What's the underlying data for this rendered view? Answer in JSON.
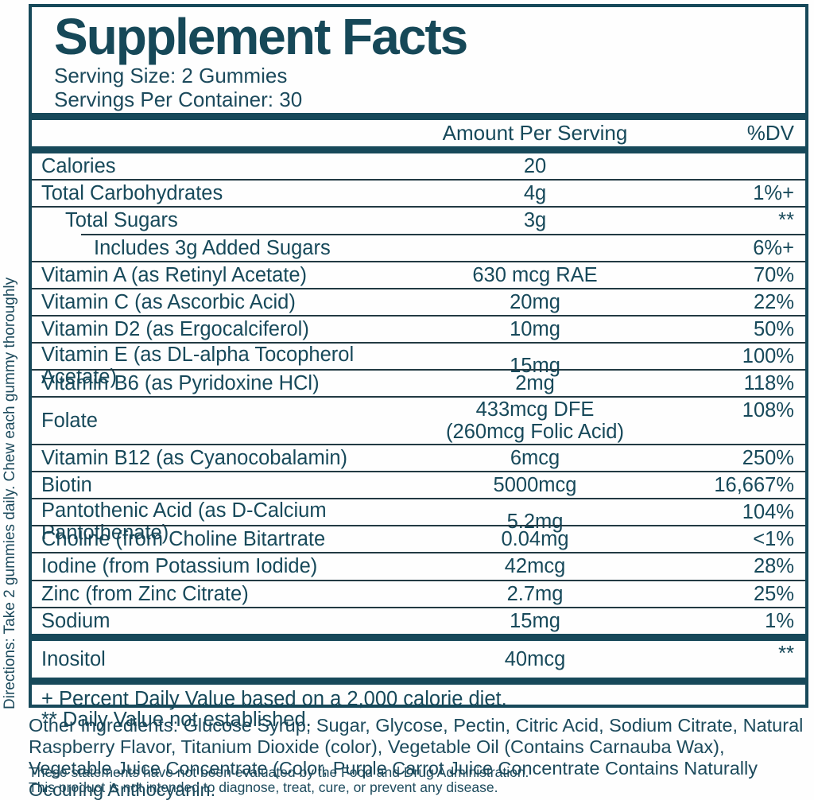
{
  "colors": {
    "teal": "#17495a",
    "separator": "#223a43"
  },
  "panel": {
    "title": "Supplement Facts",
    "serving_size": "Serving Size: 2 Gummies",
    "servings_per_container": "Servings Per Container: 30",
    "columns": {
      "amount": "Amount Per Serving",
      "dv": "%DV"
    },
    "rows": [
      {
        "name": "Calories",
        "amount": "20",
        "dv": "",
        "indent": 0,
        "sep": "none"
      },
      {
        "name": "Total Carbohydrates",
        "amount": "4g",
        "dv": "1%+",
        "indent": 0,
        "sep": "thin"
      },
      {
        "name": "Total Sugars",
        "amount": "3g",
        "dv": "**",
        "indent": 1,
        "sep": "thin"
      },
      {
        "name": "Includes 3g Added Sugars",
        "amount": "",
        "dv": "6%+",
        "indent": 2,
        "sep": "indent"
      },
      {
        "name": "Vitamin A (as Retinyl Acetate)",
        "amount": "630 mcg RAE",
        "dv": "70%",
        "indent": 0,
        "sep": "thin"
      },
      {
        "name": "Vitamin C (as Ascorbic Acid)",
        "amount": "20mg",
        "dv": "22%",
        "indent": 0,
        "sep": "thin"
      },
      {
        "name": "Vitamin D2 (as Ergocalciferol)",
        "amount": "10mg",
        "dv": "50%",
        "indent": 0,
        "sep": "thin"
      },
      {
        "name": "Vitamin E (as DL-alpha Tocopherol Acetate)",
        "amount": "15mg",
        "dv": "100%",
        "indent": 0,
        "sep": "thin"
      },
      {
        "name": "Vitamin B6 (as Pyridoxine HCl)",
        "amount": "2mg",
        "dv": "118%",
        "indent": 0,
        "sep": "thin"
      },
      {
        "name": "Folate",
        "amount": "433mcg DFE",
        "amount2": "(260mcg Folic Acid)",
        "dv": "108%",
        "indent": 0,
        "sep": "thin"
      },
      {
        "name": "Vitamin B12 (as Cyanocobalamin)",
        "amount": "6mcg",
        "dv": "250%",
        "indent": 0,
        "sep": "thin"
      },
      {
        "name": "Biotin",
        "amount": "5000mcg",
        "dv": "16,667%",
        "indent": 0,
        "sep": "thin"
      },
      {
        "name": "Pantothenic Acid (as D-Calcium Pantothenate)",
        "amount": "5.2mg",
        "dv": "104%",
        "indent": 0,
        "sep": "thin"
      },
      {
        "name": "Choline (from Choline Bitartrate",
        "amount": "0.04mg",
        "dv": "<1%",
        "indent": 0,
        "sep": "thin"
      },
      {
        "name": "Iodine (from Potassium Iodide)",
        "amount": "42mcg",
        "dv": "28%",
        "indent": 0,
        "sep": "thin"
      },
      {
        "name": "Zinc (from Zinc Citrate)",
        "amount": "2.7mg",
        "dv": "25%",
        "indent": 0,
        "sep": "thin"
      },
      {
        "name": "Sodium",
        "amount": "15mg",
        "dv": "1%",
        "indent": 0,
        "sep": "thin"
      },
      {
        "name": "Inositol",
        "amount": "40mcg",
        "dv": "**",
        "indent": 0,
        "sep": "thick",
        "tall": true
      }
    ],
    "footnotes": [
      "+ Percent Daily Value based on a 2,000 calorie diet.",
      "** Daily Value not established."
    ]
  },
  "directions": "Directions: Take 2 gummies daily. Chew each gummy thoroughly",
  "other_ingredients": "Other Ingredients: Glucose Syrup, Sugar, Glycose, Pectin, Citric Acid, Sodium Citrate, Natural Raspberry Flavor, Titanium Dioxide (color), Vegetable Oil (Contains Carnauba Wax), Vegetable Juice Concentrate (Color, Purple Carrot Juice Concentrate Contains Naturally Occuring Anthocyanin.",
  "disclaimers": [
    "These statements have not been evaluated by the Food and Drug Administration.",
    "This product is not intended to diagnose, treat, cure, or prevent any disease."
  ]
}
